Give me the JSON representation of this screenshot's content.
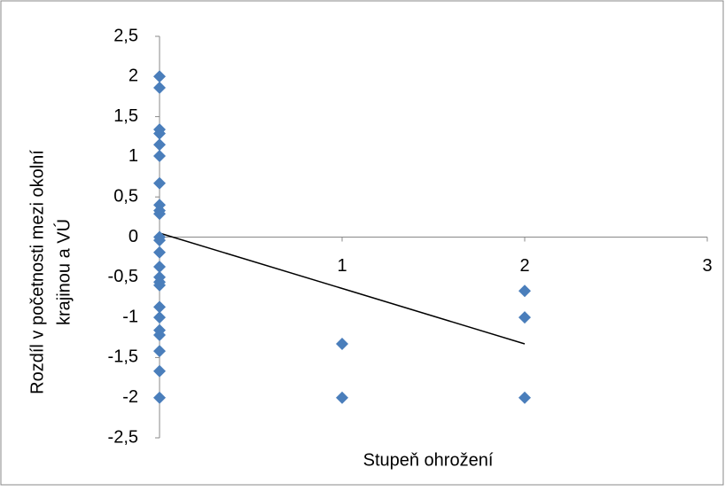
{
  "chart_data": {
    "type": "scatter",
    "x_label": "Stupeň ohrožení",
    "y_label": [
      "Rozdíl v početnosti mezi okolní",
      "krajinou a VÚ"
    ],
    "x": [
      0,
      0,
      0,
      0,
      0,
      0,
      0,
      0,
      0,
      0,
      0,
      0,
      0,
      0,
      0,
      0,
      0,
      0,
      0,
      0,
      0,
      0,
      0,
      0,
      1,
      1,
      2,
      2,
      2
    ],
    "values": [
      2,
      1.86,
      1.34,
      1.29,
      1.15,
      1.01,
      0.67,
      0.4,
      0.33,
      0.29,
      0,
      -0.04,
      -0.19,
      -0.37,
      -0.5,
      -0.56,
      -0.6,
      -0.87,
      -1,
      -1.16,
      -1.22,
      -1.42,
      -1.67,
      -2,
      -1.33,
      -2,
      -0.67,
      -1,
      -2
    ],
    "color": "#4a7ebb",
    "trendline": {
      "x": [
        0,
        2
      ],
      "values": [
        0.05,
        -1.33
      ],
      "color": "#000000"
    },
    "xlim": [
      0,
      3
    ],
    "xticks": [
      1,
      2,
      3
    ],
    "ylim": [
      -2.5,
      2.5
    ],
    "yticks": [
      {
        "value": -2.5,
        "label": "-2,5"
      },
      -2,
      {
        "value": -1.5,
        "label": "-1,5"
      },
      -1,
      {
        "value": -0.5,
        "label": "-0,5"
      },
      0,
      {
        "value": 0.5,
        "label": "0,5"
      },
      1,
      {
        "value": 1.5,
        "label": "1,5"
      },
      2,
      {
        "value": 2.5,
        "label": "2,5"
      }
    ]
  }
}
